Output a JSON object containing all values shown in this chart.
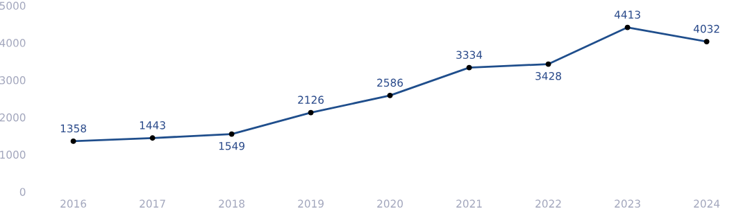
{
  "chart_data": {
    "type": "line",
    "categories": [
      "2016",
      "2017",
      "2018",
      "2019",
      "2020",
      "2021",
      "2022",
      "2023",
      "2024"
    ],
    "series": [
      {
        "color": "#1f4e8c",
        "values": [
          1358,
          1443,
          1549,
          2126,
          2586,
          3334,
          3428,
          4413,
          4032
        ]
      }
    ],
    "ylim": [
      0,
      5000
    ],
    "yticks": [
      0,
      1000,
      2000,
      3000,
      4000,
      5000
    ],
    "grid": false,
    "marker": "circle",
    "line_style": "solid",
    "data_labels": true
  }
}
